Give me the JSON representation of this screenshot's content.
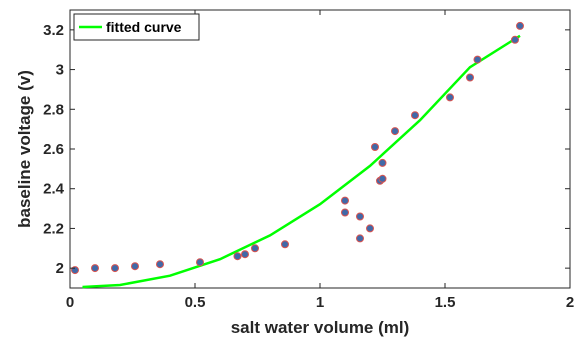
{
  "chart_data": {
    "type": "scatter",
    "xlabel": "salt water volume (ml)",
    "ylabel": "baseline voltage (v)",
    "xlim": [
      0,
      2
    ],
    "ylim": [
      1.9,
      3.3
    ],
    "xticks": [
      0,
      0.5,
      1,
      1.5,
      2
    ],
    "xtick_labels": [
      "0",
      "0.5",
      "1",
      "1.5",
      "2"
    ],
    "yticks": [
      2,
      2.2,
      2.4,
      2.6,
      2.8,
      3,
      3.2
    ],
    "ytick_labels": [
      "2",
      "2.2",
      "2.4",
      "2.6",
      "2.8",
      "3",
      "3.2"
    ],
    "grid": false,
    "legend": {
      "placement": "top-left",
      "entries": [
        "fitted curve"
      ]
    },
    "series": [
      {
        "kind": "points",
        "marker_fill": "#4169a8",
        "marker_edge": "#d9534f",
        "x": [
          0.02,
          0.1,
          0.18,
          0.26,
          0.36,
          0.52,
          0.67,
          0.7,
          0.74,
          0.86,
          1.1,
          1.1,
          1.16,
          1.16,
          1.2,
          1.22,
          1.24,
          1.25,
          1.25,
          1.3,
          1.38,
          1.52,
          1.6,
          1.63,
          1.78,
          1.8
        ],
        "y": [
          1.99,
          2.0,
          2.0,
          2.01,
          2.02,
          2.03,
          2.06,
          2.07,
          2.1,
          2.12,
          2.34,
          2.28,
          2.26,
          2.15,
          2.2,
          2.61,
          2.44,
          2.53,
          2.45,
          2.69,
          2.77,
          2.86,
          2.96,
          3.05,
          3.15,
          3.22
        ]
      },
      {
        "kind": "line",
        "name": "fitted curve",
        "color": "#00ff00",
        "x": [
          0.05,
          0.2,
          0.4,
          0.6,
          0.8,
          1.0,
          1.2,
          1.4,
          1.6,
          1.8
        ],
        "y": [
          1.905,
          1.915,
          1.962,
          2.045,
          2.165,
          2.322,
          2.515,
          2.745,
          3.012,
          3.17
        ]
      }
    ]
  }
}
